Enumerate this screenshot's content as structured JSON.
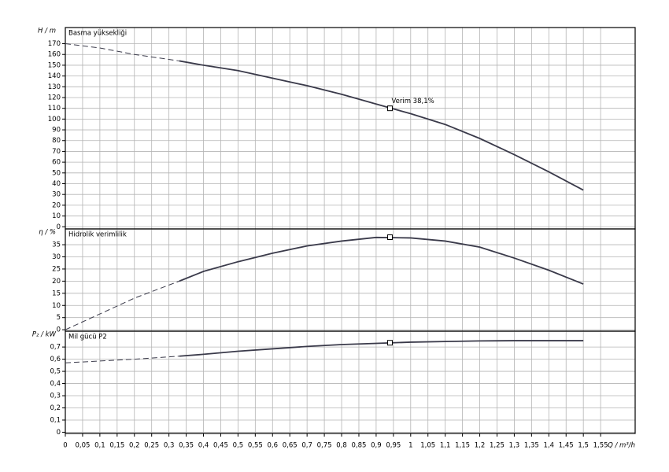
{
  "chart_data": [
    {
      "type": "line",
      "title": "Basma yüksekliği",
      "ylabel": "H / m",
      "color": "#3a3a4a",
      "ylim": [
        -2,
        185
      ],
      "yticks": [
        0,
        10,
        20,
        30,
        40,
        50,
        60,
        70,
        80,
        90,
        100,
        110,
        120,
        130,
        140,
        150,
        160,
        170
      ],
      "grid": true,
      "series": [
        {
          "style": "dashed",
          "x": [
            0,
            0.1,
            0.2,
            0.33
          ],
          "values": [
            170,
            166,
            160,
            154
          ]
        },
        {
          "style": "solid",
          "x": [
            0.33,
            0.4,
            0.5,
            0.6,
            0.7,
            0.8,
            0.9,
            1.0,
            1.1,
            1.2,
            1.3,
            1.4,
            1.5
          ],
          "values": [
            154,
            150,
            145,
            138,
            131,
            123,
            114,
            105,
            95,
            82,
            67,
            51,
            34
          ]
        }
      ],
      "operating_point": {
        "x": 0.94,
        "y": 110
      },
      "annotation": "Verim  38,1%"
    },
    {
      "type": "line",
      "title": "Hidrolik verimlilik",
      "ylabel": "η / %",
      "color": "#3a3a4a",
      "ylim": [
        -0.6,
        41.5
      ],
      "yticks": [
        0,
        5,
        10,
        15,
        20,
        25,
        30,
        35
      ],
      "grid": true,
      "series": [
        {
          "style": "dashed",
          "x": [
            0,
            0.1,
            0.2,
            0.33
          ],
          "values": [
            0,
            6.5,
            13,
            20
          ]
        },
        {
          "style": "solid",
          "x": [
            0.33,
            0.4,
            0.5,
            0.6,
            0.7,
            0.8,
            0.9,
            1.0,
            1.1,
            1.2,
            1.3,
            1.4,
            1.5
          ],
          "values": [
            20,
            24,
            28,
            31.5,
            34.5,
            36.5,
            38,
            37.8,
            36.5,
            34,
            29.5,
            24.5,
            18.8
          ]
        }
      ],
      "operating_point": {
        "x": 0.94,
        "y": 38.1
      }
    },
    {
      "type": "line",
      "title": "Mil gücü P2",
      "ylabel": "P₂ / kW",
      "color": "#3a3a4a",
      "ylim": [
        -0.01,
        0.83
      ],
      "yticks": [
        0,
        {
          "value": 0.1,
          "label": "0,1"
        },
        {
          "value": 0.2,
          "label": "0,2"
        },
        {
          "value": 0.3,
          "label": "0,3"
        },
        {
          "value": 0.4,
          "label": "0,4"
        },
        {
          "value": 0.5,
          "label": "0,5"
        },
        {
          "value": 0.6,
          "label": "0,6"
        },
        {
          "value": 0.7,
          "label": "0,7"
        }
      ],
      "grid": true,
      "series": [
        {
          "style": "dashed",
          "x": [
            0,
            0.1,
            0.2,
            0.33
          ],
          "values": [
            0.57,
            0.585,
            0.6,
            0.625
          ]
        },
        {
          "style": "solid",
          "x": [
            0.33,
            0.4,
            0.5,
            0.6,
            0.7,
            0.8,
            0.9,
            1.0,
            1.1,
            1.2,
            1.3,
            1.4,
            1.5
          ],
          "values": [
            0.625,
            0.64,
            0.665,
            0.685,
            0.705,
            0.72,
            0.73,
            0.74,
            0.745,
            0.75,
            0.752,
            0.752,
            0.752
          ]
        }
      ],
      "operating_point": {
        "x": 0.94,
        "y": 0.735
      },
      "xlabel": "Q / m³/h",
      "xlim": [
        0,
        1.65
      ],
      "xticks": [
        0,
        {
          "value": 0.05,
          "label": "0,05"
        },
        {
          "value": 0.1,
          "label": "0,1"
        },
        {
          "value": 0.15,
          "label": "0,15"
        },
        {
          "value": 0.2,
          "label": "0,2"
        },
        {
          "value": 0.25,
          "label": "0,25"
        },
        {
          "value": 0.3,
          "label": "0,3"
        },
        {
          "value": 0.35,
          "label": "0,35"
        },
        {
          "value": 0.4,
          "label": "0,4"
        },
        {
          "value": 0.45,
          "label": "0,45"
        },
        {
          "value": 0.5,
          "label": "0,5"
        },
        {
          "value": 0.55,
          "label": "0,55"
        },
        {
          "value": 0.6,
          "label": "0,6"
        },
        {
          "value": 0.65,
          "label": "0,65"
        },
        {
          "value": 0.7,
          "label": "0,7"
        },
        {
          "value": 0.75,
          "label": "0,75"
        },
        {
          "value": 0.8,
          "label": "0,8"
        },
        {
          "value": 0.85,
          "label": "0,85"
        },
        {
          "value": 0.9,
          "label": "0,9"
        },
        {
          "value": 0.95,
          "label": "0,95"
        },
        1,
        {
          "value": 1.05,
          "label": "1,05"
        },
        {
          "value": 1.1,
          "label": "1,1"
        },
        {
          "value": 1.15,
          "label": "1,15"
        },
        {
          "value": 1.2,
          "label": "1,2"
        },
        {
          "value": 1.25,
          "label": "1,25"
        },
        {
          "value": 1.3,
          "label": "1,3"
        },
        {
          "value": 1.35,
          "label": "1,35"
        },
        {
          "value": 1.4,
          "label": "1,4"
        },
        {
          "value": 1.45,
          "label": "1,45"
        },
        {
          "value": 1.5,
          "label": "1,5"
        },
        {
          "value": 1.55,
          "label": "1,55"
        }
      ]
    }
  ]
}
